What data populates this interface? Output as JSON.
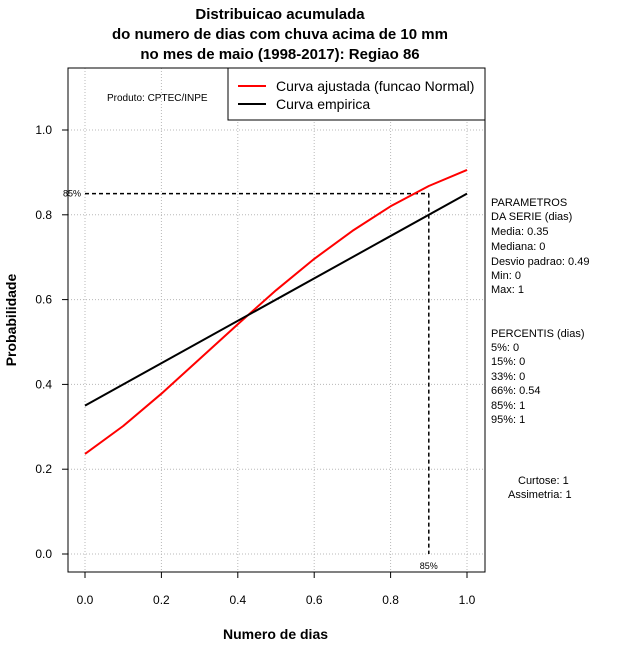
{
  "chart_data": {
    "type": "line",
    "title": [
      "Distribuicao acumulada",
      "do numero de dias com chuva acima de 10 mm",
      "no mes de maio (1998-2017): Regiao 86"
    ],
    "xlabel": "Numero de dias",
    "ylabel": "Probabilidade",
    "xlim": [
      0,
      1
    ],
    "ylim": [
      0,
      1
    ],
    "x_ticks": [
      "0.0",
      "0.2",
      "0.4",
      "0.6",
      "0.8",
      "1.0"
    ],
    "y_ticks": [
      "0.0",
      "0.2",
      "0.4",
      "0.6",
      "0.8",
      "1.0"
    ],
    "grid": true,
    "credit": "Produto: CPTEC/INPE",
    "legend": {
      "position": "top-right",
      "entries": [
        "Curva ajustada (funcao Normal)",
        "Curva empirica"
      ]
    },
    "series": [
      {
        "name": "Curva ajustada (funcao Normal)",
        "color": "#ff0000",
        "x": [
          0.0,
          0.1,
          0.2,
          0.3,
          0.4,
          0.5,
          0.6,
          0.7,
          0.8,
          0.9,
          1.0
        ],
        "y": [
          0.236,
          0.302,
          0.378,
          0.46,
          0.542,
          0.622,
          0.696,
          0.762,
          0.82,
          0.868,
          0.906
        ]
      },
      {
        "name": "Curva empirica",
        "color": "#000000",
        "x": [
          0.0,
          1.0
        ],
        "y": [
          0.35,
          0.85
        ]
      }
    ],
    "percentile_marker": {
      "label_y": "85%",
      "label_x": "85%",
      "y": 0.85,
      "x": 0.9
    }
  },
  "stats": {
    "params_header": [
      "PARAMETROS",
      "DA SERIE (dias)"
    ],
    "params": [
      "Media: 0.35",
      "Mediana: 0",
      "Desvio padrao: 0.49",
      "Min: 0",
      "Max: 1"
    ],
    "percentis_header": "PERCENTIS (dias)",
    "percentis": [
      "5%: 0",
      "15%: 0",
      "33%: 0",
      "66%: 0.54",
      "85%: 1",
      "95%: 1"
    ],
    "curtose": "Curtose: 1",
    "assimetria": "Assimetria: 1"
  }
}
